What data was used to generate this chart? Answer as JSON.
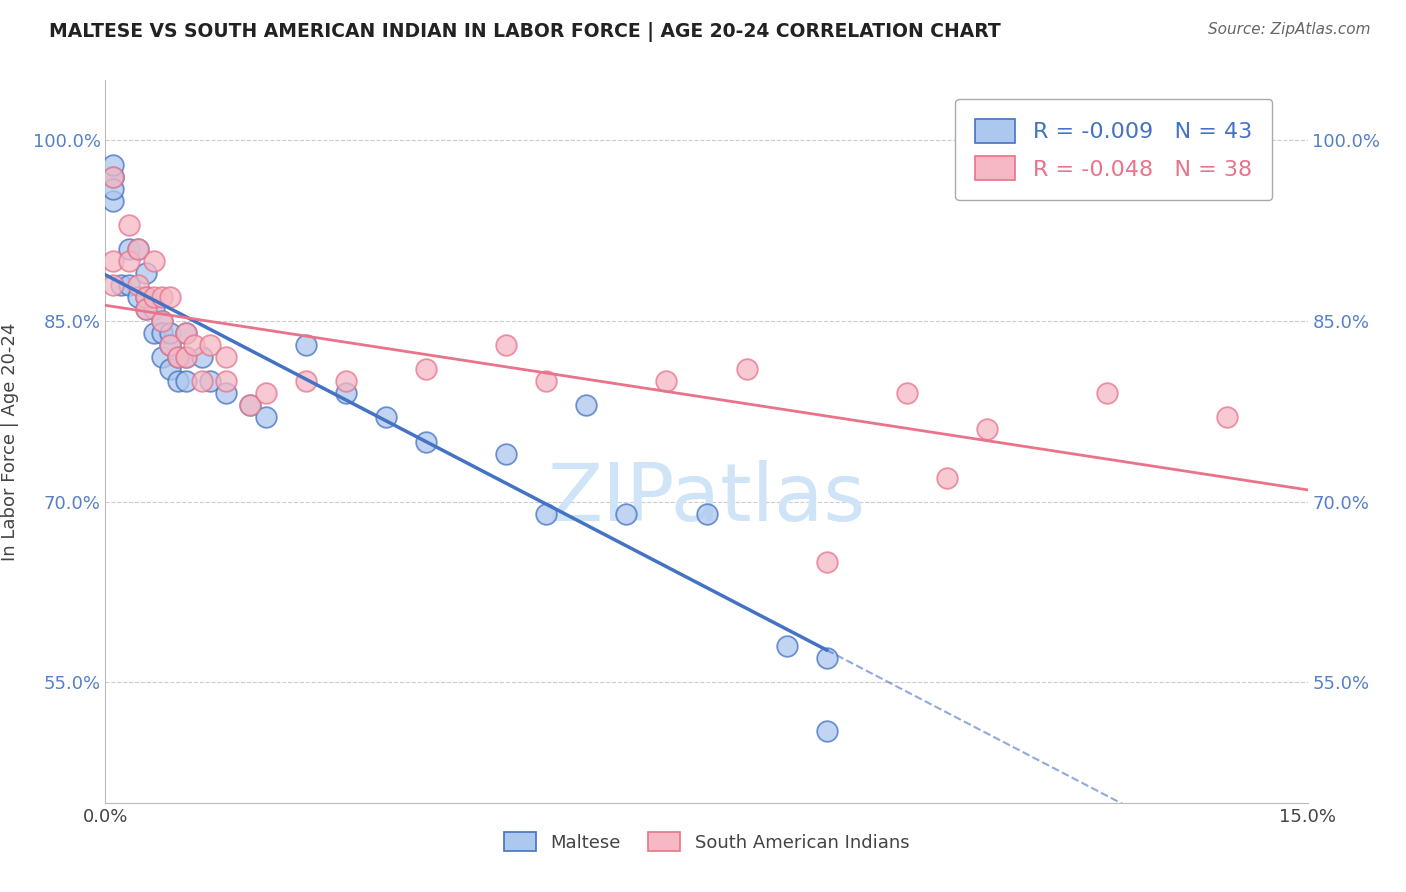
{
  "title": "MALTESE VS SOUTH AMERICAN INDIAN IN LABOR FORCE | AGE 20-24 CORRELATION CHART",
  "source": "Source: ZipAtlas.com",
  "ylabel": "In Labor Force | Age 20-24",
  "xlabel": "",
  "xlim": [
    0.0,
    0.15
  ],
  "ylim": [
    0.45,
    1.05
  ],
  "yticks": [
    0.55,
    0.7,
    0.85,
    1.0
  ],
  "ytick_labels": [
    "55.0%",
    "70.0%",
    "85.0%",
    "100.0%"
  ],
  "xticks": [
    0.0,
    0.15
  ],
  "xtick_labels": [
    "0.0%",
    "15.0%"
  ],
  "legend_r_blue": "-0.009",
  "legend_n_blue": "43",
  "legend_r_pink": "-0.048",
  "legend_n_pink": "38",
  "blue_color": "#adc8ee",
  "pink_color": "#f5b8c4",
  "line_blue": "#4472c4",
  "line_pink": "#e8738a",
  "watermark_color": "#d0e4f7",
  "blue_x": [
    0.001,
    0.001,
    0.001,
    0.001,
    0.001,
    0.002,
    0.003,
    0.003,
    0.004,
    0.004,
    0.005,
    0.005,
    0.005,
    0.006,
    0.006,
    0.007,
    0.007,
    0.007,
    0.008,
    0.008,
    0.008,
    0.009,
    0.009,
    0.01,
    0.01,
    0.01,
    0.012,
    0.013,
    0.015,
    0.018,
    0.02,
    0.025,
    0.03,
    0.035,
    0.04,
    0.05,
    0.055,
    0.06,
    0.065,
    0.075,
    0.085,
    0.09,
    0.09
  ],
  "blue_y": [
    0.97,
    0.97,
    0.98,
    0.95,
    0.96,
    0.88,
    0.91,
    0.88,
    0.87,
    0.91,
    0.89,
    0.87,
    0.86,
    0.86,
    0.84,
    0.85,
    0.84,
    0.82,
    0.83,
    0.81,
    0.84,
    0.82,
    0.8,
    0.82,
    0.8,
    0.84,
    0.82,
    0.8,
    0.79,
    0.78,
    0.77,
    0.83,
    0.79,
    0.77,
    0.75,
    0.74,
    0.69,
    0.78,
    0.69,
    0.69,
    0.58,
    0.57,
    0.51
  ],
  "pink_x": [
    0.001,
    0.001,
    0.001,
    0.003,
    0.003,
    0.004,
    0.004,
    0.005,
    0.005,
    0.006,
    0.006,
    0.007,
    0.007,
    0.008,
    0.008,
    0.009,
    0.01,
    0.01,
    0.011,
    0.012,
    0.013,
    0.015,
    0.015,
    0.018,
    0.02,
    0.025,
    0.03,
    0.04,
    0.05,
    0.055,
    0.07,
    0.08,
    0.09,
    0.1,
    0.105,
    0.11,
    0.125,
    0.14
  ],
  "pink_y": [
    0.9,
    0.88,
    0.97,
    0.93,
    0.9,
    0.91,
    0.88,
    0.87,
    0.86,
    0.9,
    0.87,
    0.85,
    0.87,
    0.87,
    0.83,
    0.82,
    0.84,
    0.82,
    0.83,
    0.8,
    0.83,
    0.8,
    0.82,
    0.78,
    0.79,
    0.8,
    0.8,
    0.81,
    0.83,
    0.8,
    0.8,
    0.81,
    0.65,
    0.79,
    0.72,
    0.76,
    0.79,
    0.77
  ],
  "background_color": "#ffffff",
  "grid_color": "#cccccc",
  "blue_line_end_x": 0.09
}
